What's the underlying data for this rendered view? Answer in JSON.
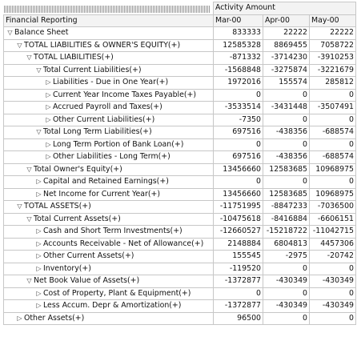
{
  "header": {
    "group_label": "Activity Amount",
    "dimension_label": "Financial Reporting"
  },
  "columns": [
    "Mar-00",
    "Apr-00",
    "May-00"
  ],
  "rows": [
    {
      "level": 0,
      "expanded": true,
      "label": "Balance Sheet",
      "values": [
        "833333",
        "22222",
        "22222"
      ]
    },
    {
      "level": 1,
      "expanded": true,
      "label": "TOTAL LIABILITIES & OWNER'S EQUITY(+)",
      "values": [
        "12585328",
        "8869455",
        "7058722"
      ]
    },
    {
      "level": 2,
      "expanded": true,
      "label": "TOTAL LIABILITIES(+)",
      "values": [
        "-871332",
        "-3714230",
        "-3910253"
      ]
    },
    {
      "level": 3,
      "expanded": true,
      "label": "Total Current Liabilities(+)",
      "values": [
        "-1568848",
        "-3275874",
        "-3221679"
      ]
    },
    {
      "level": 4,
      "expanded": false,
      "label": "Liabilities - Due in One Year(+)",
      "values": [
        "1972016",
        "155574",
        "285812"
      ]
    },
    {
      "level": 4,
      "expanded": false,
      "label": "Current Year Income Taxes Payable(+)",
      "values": [
        "0",
        "0",
        "0"
      ]
    },
    {
      "level": 4,
      "expanded": false,
      "label": "Accrued Payroll and Taxes(+)",
      "values": [
        "-3533514",
        "-3431448",
        "-3507491"
      ]
    },
    {
      "level": 4,
      "expanded": false,
      "label": "Other Current Liabilities(+)",
      "values": [
        "-7350",
        "0",
        "0"
      ]
    },
    {
      "level": 3,
      "expanded": true,
      "label": "Total Long Term Liabilities(+)",
      "values": [
        "697516",
        "-438356",
        "-688574"
      ]
    },
    {
      "level": 4,
      "expanded": false,
      "label": "Long Term Portion of Bank Loan(+)",
      "values": [
        "0",
        "0",
        "0"
      ]
    },
    {
      "level": 4,
      "expanded": false,
      "label": "Other Liabilities - Long Term(+)",
      "values": [
        "697516",
        "-438356",
        "-688574"
      ]
    },
    {
      "level": 2,
      "expanded": true,
      "label": "Total Owner's Equity(+)",
      "values": [
        "13456660",
        "12583685",
        "10968975"
      ]
    },
    {
      "level": 3,
      "expanded": false,
      "label": "Capital and Retained Earnings(+)",
      "values": [
        "0",
        "0",
        "0"
      ]
    },
    {
      "level": 3,
      "expanded": false,
      "label": "Net Income for Current Year(+)",
      "values": [
        "13456660",
        "12583685",
        "10968975"
      ]
    },
    {
      "level": 1,
      "expanded": true,
      "label": "TOTAL ASSETS(+)",
      "values": [
        "-11751995",
        "-8847233",
        "-7036500"
      ]
    },
    {
      "level": 2,
      "expanded": true,
      "label": "Total Current Assets(+)",
      "values": [
        "-10475618",
        "-8416884",
        "-6606151"
      ]
    },
    {
      "level": 3,
      "expanded": false,
      "label": "Cash and Short Term Investments(+)",
      "values": [
        "-12660527",
        "-15218722",
        "-11042715"
      ]
    },
    {
      "level": 3,
      "expanded": false,
      "label": "Accounts Receivable - Net of Allowance(+)",
      "values": [
        "2148884",
        "6804813",
        "4457306"
      ]
    },
    {
      "level": 3,
      "expanded": false,
      "label": "Other Current Assets(+)",
      "values": [
        "155545",
        "-2975",
        "-20742"
      ]
    },
    {
      "level": 3,
      "expanded": false,
      "label": "Inventory(+)",
      "values": [
        "-119520",
        "0",
        "0"
      ]
    },
    {
      "level": 2,
      "expanded": true,
      "label": "Net Book Value of Assets(+)",
      "values": [
        "-1372877",
        "-430349",
        "-430349"
      ]
    },
    {
      "level": 3,
      "expanded": false,
      "label": "Cost of Property, Plant & Equipment(+)",
      "values": [
        "0",
        "0",
        "0"
      ]
    },
    {
      "level": 3,
      "expanded": false,
      "label": "Less Accum. Depr & Amortization(+)",
      "values": [
        "-1372877",
        "-430349",
        "-430349"
      ]
    },
    {
      "level": 1,
      "expanded": false,
      "label": "Other Assets(+)",
      "values": [
        "96500",
        "0",
        "0"
      ]
    }
  ],
  "icons": {
    "expanded": "triangle-down-icon",
    "collapsed": "triangle-right-icon"
  }
}
